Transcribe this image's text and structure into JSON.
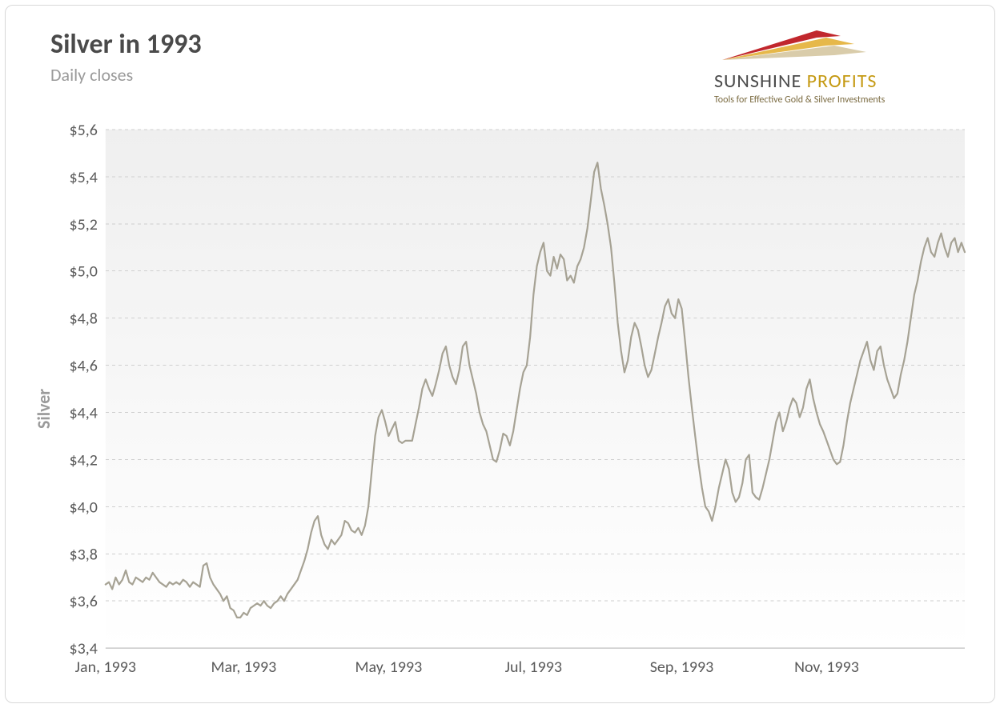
{
  "title": "Silver in 1993",
  "subtitle": "Daily closes",
  "brand": {
    "name_a": "SUNSHINE ",
    "name_b": "PROFITS",
    "tagline": "Tools for Effective Gold & Silver Investments",
    "swoosh_colors": [
      "#c1272d",
      "#e6b84a",
      "#d9ccaa"
    ]
  },
  "chart": {
    "type": "line",
    "background_top": "#efefef",
    "background_bottom": "#ffffff",
    "grid_color": "#cfcfcf",
    "line_color": "#a6a294",
    "line_width": 2.2,
    "axis_text_color": "#5a5a5a",
    "title_text_color": "#4a4a4a",
    "ylabel": "Silver",
    "ylabel_color": "#9a9a9a",
    "ylim": [
      3.4,
      5.6
    ],
    "ytick_step": 0.2,
    "ytick_labels": [
      "$3,4",
      "$3,6",
      "$3,8",
      "$4,0",
      "$4,2",
      "$4,4",
      "$4,6",
      "$4,8",
      "$5,0",
      "$5,2",
      "$5,4",
      "$5,6"
    ],
    "x_ticks": [
      {
        "i": 0,
        "label": "Jan, 1993"
      },
      {
        "i": 41,
        "label": "Mar, 1993"
      },
      {
        "i": 84,
        "label": "May, 1993"
      },
      {
        "i": 127,
        "label": "Jul, 1993"
      },
      {
        "i": 171,
        "label": "Sep, 1993"
      },
      {
        "i": 214,
        "label": "Nov, 1993"
      }
    ],
    "n_points": 256,
    "values": [
      3.67,
      3.68,
      3.65,
      3.7,
      3.67,
      3.69,
      3.73,
      3.68,
      3.67,
      3.7,
      3.69,
      3.68,
      3.7,
      3.69,
      3.72,
      3.7,
      3.68,
      3.67,
      3.66,
      3.68,
      3.67,
      3.68,
      3.67,
      3.69,
      3.68,
      3.66,
      3.68,
      3.67,
      3.66,
      3.75,
      3.76,
      3.7,
      3.67,
      3.65,
      3.63,
      3.6,
      3.62,
      3.57,
      3.56,
      3.53,
      3.53,
      3.55,
      3.54,
      3.57,
      3.58,
      3.59,
      3.58,
      3.6,
      3.58,
      3.57,
      3.59,
      3.6,
      3.62,
      3.6,
      3.63,
      3.65,
      3.67,
      3.69,
      3.73,
      3.77,
      3.82,
      3.89,
      3.94,
      3.96,
      3.88,
      3.84,
      3.82,
      3.86,
      3.84,
      3.86,
      3.88,
      3.94,
      3.93,
      3.9,
      3.89,
      3.91,
      3.88,
      3.92,
      4.0,
      4.15,
      4.3,
      4.38,
      4.41,
      4.36,
      4.3,
      4.33,
      4.36,
      4.28,
      4.27,
      4.28,
      4.28,
      4.28,
      4.35,
      4.42,
      4.5,
      4.54,
      4.5,
      4.47,
      4.52,
      4.58,
      4.65,
      4.68,
      4.6,
      4.55,
      4.52,
      4.58,
      4.68,
      4.7,
      4.6,
      4.54,
      4.48,
      4.4,
      4.35,
      4.32,
      4.26,
      4.2,
      4.19,
      4.24,
      4.31,
      4.3,
      4.26,
      4.32,
      4.41,
      4.5,
      4.57,
      4.6,
      4.72,
      4.9,
      5.02,
      5.08,
      5.12,
      5.0,
      4.98,
      5.06,
      5.01,
      5.07,
      5.05,
      4.96,
      4.98,
      4.95,
      5.02,
      5.05,
      5.1,
      5.18,
      5.3,
      5.42,
      5.46,
      5.35,
      5.28,
      5.2,
      5.1,
      4.95,
      4.78,
      4.66,
      4.57,
      4.62,
      4.72,
      4.78,
      4.75,
      4.68,
      4.6,
      4.55,
      4.58,
      4.65,
      4.72,
      4.78,
      4.85,
      4.88,
      4.82,
      4.8,
      4.88,
      4.84,
      4.7,
      4.55,
      4.42,
      4.3,
      4.18,
      4.08,
      4.0,
      3.98,
      3.94,
      4.0,
      4.08,
      4.14,
      4.2,
      4.16,
      4.06,
      4.02,
      4.04,
      4.1,
      4.2,
      4.22,
      4.06,
      4.04,
      4.03,
      4.08,
      4.14,
      4.2,
      4.28,
      4.36,
      4.4,
      4.32,
      4.36,
      4.42,
      4.46,
      4.44,
      4.38,
      4.42,
      4.5,
      4.54,
      4.46,
      4.4,
      4.35,
      4.32,
      4.28,
      4.24,
      4.2,
      4.18,
      4.19,
      4.26,
      4.36,
      4.44,
      4.5,
      4.56,
      4.62,
      4.66,
      4.7,
      4.62,
      4.58,
      4.66,
      4.68,
      4.6,
      4.54,
      4.5,
      4.46,
      4.48,
      4.56,
      4.62,
      4.7,
      4.8,
      4.9,
      4.96,
      5.04,
      5.1,
      5.14,
      5.08,
      5.06,
      5.12,
      5.16,
      5.1,
      5.06,
      5.12,
      5.14,
      5.08,
      5.12,
      5.08
    ]
  }
}
